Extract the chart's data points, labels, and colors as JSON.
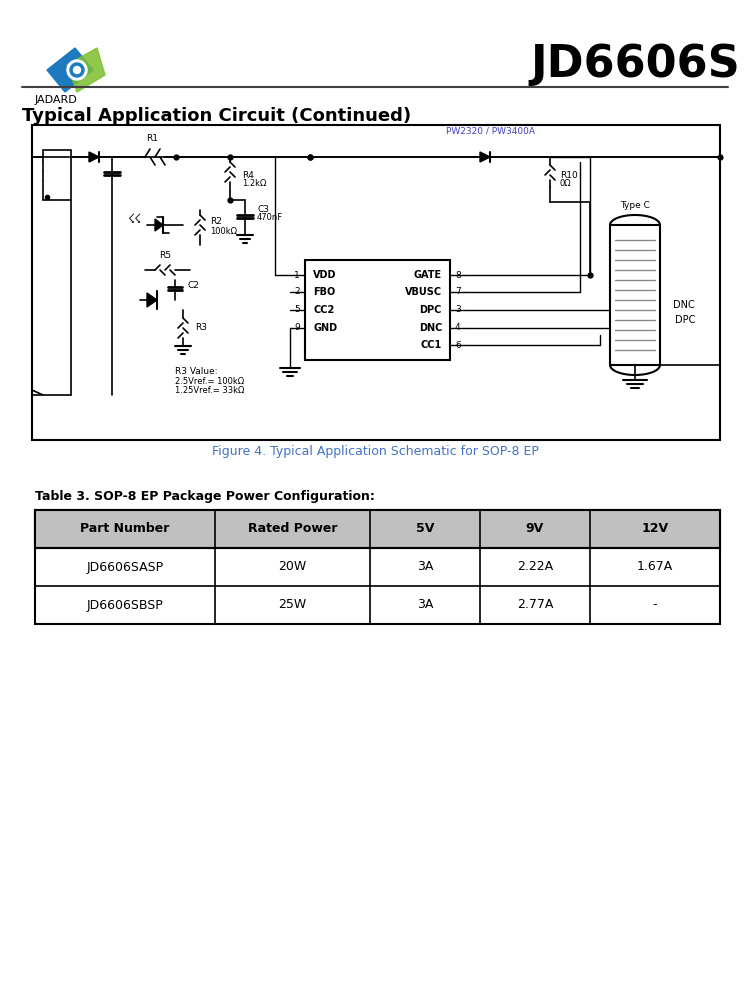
{
  "title": "JD6606S",
  "company": "JADARD",
  "section_title": "Typical Application Circuit (Continued)",
  "figure_caption": "Figure 4. Typical Application Schematic for SOP-8 EP",
  "table_title": "Table 3. SOP-8 EP Package Power Configuration:",
  "table_headers": [
    "Part Number",
    "Rated Power",
    "5V",
    "9V",
    "12V"
  ],
  "table_rows": [
    [
      "JD6606SASP",
      "20W",
      "3A",
      "2.22A",
      "1.67A"
    ],
    [
      "JD6606SBSP",
      "25W",
      "3A",
      "2.77A",
      "-"
    ]
  ],
  "bg_color": "#ffffff",
  "header_bg": "#c0c0c0",
  "border_color": "#000000",
  "title_color": "#000000",
  "section_color": "#000000",
  "figure_caption_color": "#4472c4",
  "table_title_color": "#000000",
  "circuit_color": "#000000",
  "label_color": "#c05000",
  "pin_label_color": "#000000",
  "pw_label_color": "#4040c0",
  "header_line_color": "#404040"
}
